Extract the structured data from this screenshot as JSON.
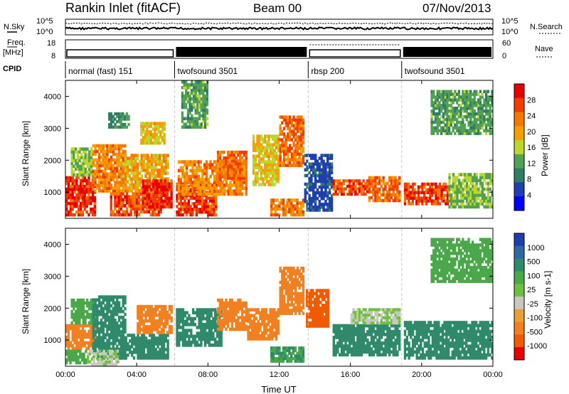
{
  "header": {
    "title": "Rankin Inlet (fitACF)",
    "beam": "Beam 00",
    "date": "07/Nov/2013"
  },
  "status_panel": {
    "left_labels": {
      "nsky": "N.Sky",
      "freq": "Freq.",
      "freq_unit": "[MHz]",
      "cpid": "CPID"
    },
    "right_labels": {
      "nsearch": "N.Search",
      "nave": "Nave"
    },
    "noise_ticks": [
      "10^5",
      "10^0"
    ],
    "freq_ticks": [
      "18",
      "8"
    ],
    "nave_ticks": [
      "60",
      "0"
    ],
    "cpid_segments": [
      {
        "label": "normal (fast) 151",
        "start_hour": 0.0,
        "end_hour": 6.13
      },
      {
        "label": "twofsound 3501",
        "start_hour": 6.13,
        "end_hour": 13.63
      },
      {
        "label": "rbsp 200",
        "start_hour": 13.63,
        "end_hour": 18.88
      },
      {
        "label": "twofsound 3501",
        "start_hour": 18.88,
        "end_hour": 24.0
      }
    ]
  },
  "colors": {
    "power": [
      "#0000ff",
      "#1f3fb0",
      "#2e7d64",
      "#52a052",
      "#bcd630",
      "#f5a000",
      "#f57800",
      "#f23c00",
      "#e60000"
    ],
    "velocity": [
      "#1f3fb0",
      "#2e6aa0",
      "#2e8a6a",
      "#4aa84a",
      "#70c040",
      "#c8c8c0",
      "#e8a030",
      "#f08020",
      "#f05a00",
      "#e60000"
    ]
  },
  "chart_data": [
    {
      "type": "heatmap",
      "name": "power",
      "ylabel": "Slant Range [km]",
      "yticks": [
        1000,
        2000,
        3000,
        4000
      ],
      "xticks": [
        "00:00",
        "04:00",
        "08:00",
        "12:00",
        "16:00",
        "20:00",
        "00:00"
      ],
      "xlim_hours": [
        0,
        24
      ],
      "ylim": [
        180,
        4500
      ],
      "colorbar": {
        "label": "Power [dB]",
        "ticks": [
          "28",
          "24",
          "20",
          "16",
          "12",
          "8",
          "4"
        ],
        "min": 0,
        "max": 32
      },
      "regions": [
        {
          "t0": 0.0,
          "t1": 1.7,
          "r0": 250,
          "r1": 1500,
          "value": 28
        },
        {
          "t0": 0.3,
          "t1": 1.5,
          "r0": 1500,
          "r1": 2400,
          "value": 14
        },
        {
          "t0": 1.5,
          "t1": 3.4,
          "r0": 1000,
          "r1": 2500,
          "value": 22
        },
        {
          "t0": 2.5,
          "t1": 5.4,
          "r0": 250,
          "r1": 1000,
          "value": 26
        },
        {
          "t0": 3.2,
          "t1": 5.8,
          "r0": 1000,
          "r1": 2200,
          "value": 20
        },
        {
          "t0": 4.2,
          "t1": 5.6,
          "r0": 2500,
          "r1": 3200,
          "value": 18
        },
        {
          "t0": 2.4,
          "t1": 3.6,
          "r0": 3000,
          "r1": 3500,
          "value": 10
        },
        {
          "t0": 4.3,
          "t1": 6.0,
          "r0": 500,
          "r1": 1400,
          "value": 29
        },
        {
          "t0": 6.2,
          "t1": 8.5,
          "r0": 250,
          "r1": 1300,
          "value": 27
        },
        {
          "t0": 6.3,
          "t1": 10.2,
          "r0": 900,
          "r1": 2000,
          "value": 22
        },
        {
          "t0": 8.5,
          "t1": 10.2,
          "r0": 1400,
          "r1": 2300,
          "value": 24
        },
        {
          "t0": 6.5,
          "t1": 8.0,
          "r0": 3000,
          "r1": 4500,
          "value": 12
        },
        {
          "t0": 10.5,
          "t1": 12.0,
          "r0": 1200,
          "r1": 2800,
          "value": 18
        },
        {
          "t0": 12.0,
          "t1": 13.4,
          "r0": 1800,
          "r1": 3400,
          "value": 24
        },
        {
          "t0": 11.5,
          "t1": 13.4,
          "r0": 250,
          "r1": 800,
          "value": 22
        },
        {
          "t0": 13.4,
          "t1": 15.0,
          "r0": 400,
          "r1": 2200,
          "value": 6
        },
        {
          "t0": 15.0,
          "t1": 17.0,
          "r0": 900,
          "r1": 1400,
          "value": 26
        },
        {
          "t0": 17.0,
          "t1": 18.8,
          "r0": 700,
          "r1": 1500,
          "value": 24
        },
        {
          "t0": 19.0,
          "t1": 21.5,
          "r0": 600,
          "r1": 1300,
          "value": 27
        },
        {
          "t0": 21.5,
          "t1": 24.0,
          "r0": 500,
          "r1": 1600,
          "value": 14
        },
        {
          "t0": 20.5,
          "t1": 24.0,
          "r0": 2800,
          "r1": 4200,
          "value": 12
        }
      ]
    },
    {
      "type": "heatmap",
      "name": "velocity",
      "ylabel": "Slant Range [km]",
      "yticks": [
        1000,
        2000,
        3000,
        4000
      ],
      "xticks": [
        "00:00",
        "04:00",
        "08:00",
        "12:00",
        "16:00",
        "20:00",
        "00:00"
      ],
      "xlabel": "Time UT",
      "xlim_hours": [
        0,
        24
      ],
      "ylim": [
        180,
        4500
      ],
      "colorbar": {
        "label": "Velocity [m s-1]",
        "ticks": [
          "1000",
          "500",
          "100",
          "25",
          "-25",
          "-100",
          "-500",
          "-1000"
        ]
      },
      "regions": [
        {
          "t0": 0.0,
          "t1": 1.7,
          "r0": 700,
          "r1": 1500,
          "value": -200
        },
        {
          "t0": 0.0,
          "t1": 1.2,
          "r0": 250,
          "r1": 700,
          "value": 80
        },
        {
          "t0": 0.3,
          "t1": 1.7,
          "r0": 1500,
          "r1": 2300,
          "value": 60
        },
        {
          "t0": 1.5,
          "t1": 3.4,
          "r0": 400,
          "r1": 2400,
          "value": 120
        },
        {
          "t0": 1.2,
          "t1": 3.0,
          "r0": 200,
          "r1": 700,
          "value": 0
        },
        {
          "t0": 3.0,
          "t1": 5.8,
          "r0": 400,
          "r1": 1200,
          "value": 150
        },
        {
          "t0": 4.0,
          "t1": 6.0,
          "r0": 1200,
          "r1": 2100,
          "value": -200
        },
        {
          "t0": 6.2,
          "t1": 8.8,
          "r0": 800,
          "r1": 2000,
          "value": 200
        },
        {
          "t0": 8.5,
          "t1": 10.2,
          "r0": 1300,
          "r1": 2300,
          "value": -200
        },
        {
          "t0": 10.2,
          "t1": 12.0,
          "r0": 1000,
          "r1": 2000,
          "value": -150
        },
        {
          "t0": 12.0,
          "t1": 13.4,
          "r0": 1800,
          "r1": 3300,
          "value": -400
        },
        {
          "t0": 11.5,
          "t1": 13.4,
          "r0": 300,
          "r1": 800,
          "value": 100
        },
        {
          "t0": 13.5,
          "t1": 14.8,
          "r0": 1400,
          "r1": 2600,
          "value": -800
        },
        {
          "t0": 15.0,
          "t1": 18.8,
          "r0": 500,
          "r1": 1500,
          "value": 150
        },
        {
          "t0": 16.0,
          "t1": 18.8,
          "r0": 1500,
          "r1": 2000,
          "value": 0
        },
        {
          "t0": 19.0,
          "t1": 24.0,
          "r0": 400,
          "r1": 1600,
          "value": 400
        },
        {
          "t0": 20.5,
          "t1": 24.0,
          "r0": 2800,
          "r1": 4200,
          "value": 60
        }
      ]
    }
  ]
}
